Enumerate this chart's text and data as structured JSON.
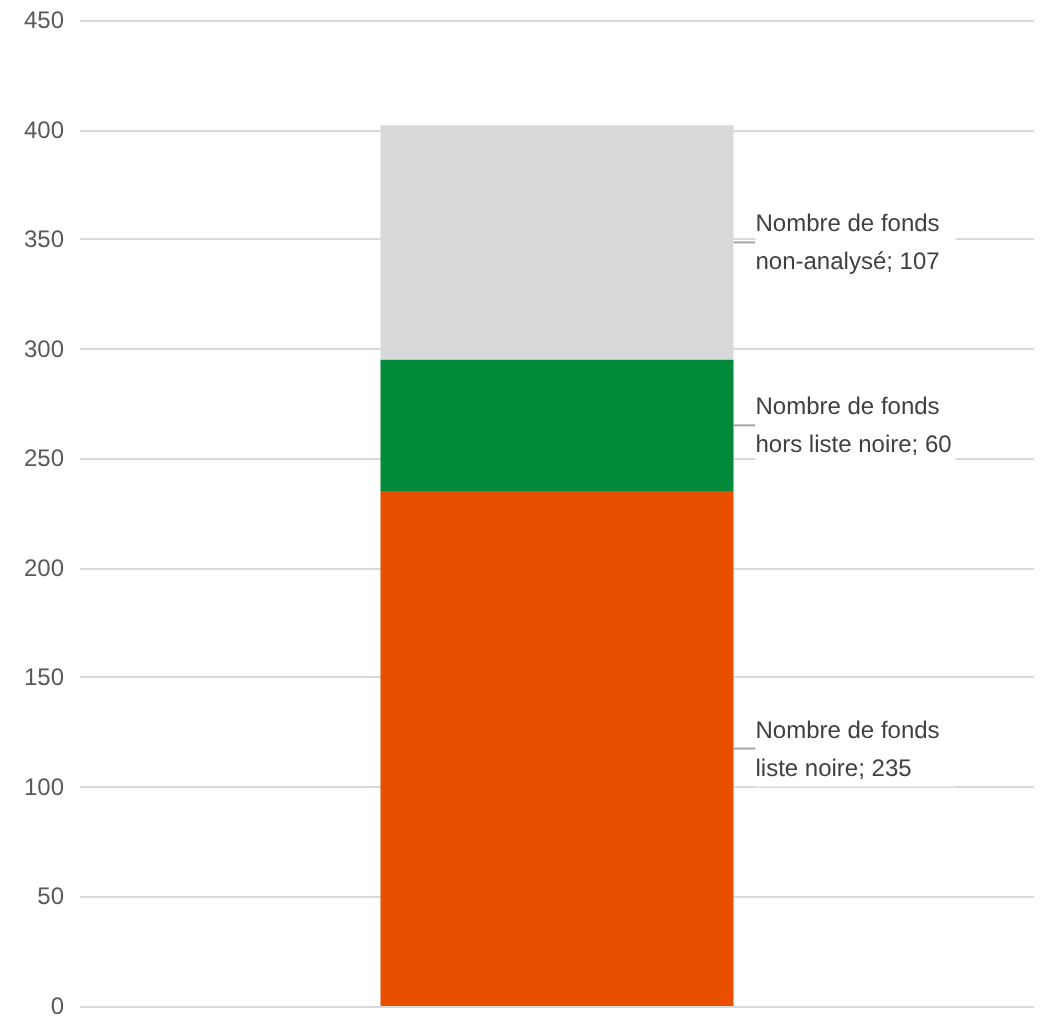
{
  "chart_data": {
    "type": "bar",
    "stacked": true,
    "categories": [
      null
    ],
    "series": [
      {
        "color": "#e85000",
        "values": [
          235
        ],
        "value_labels": [
          "Nombre de fonds liste noire; 235"
        ]
      },
      {
        "color": "#008a3a",
        "values": [
          60
        ],
        "value_labels": [
          "Nombre de fonds hors liste noire; 60"
        ]
      },
      {
        "color": "#d9d9d9",
        "values": [
          107
        ],
        "value_labels": [
          "Nombre de fonds non-analysé; 107"
        ]
      }
    ],
    "ylim": [
      0,
      450
    ],
    "yticks": [
      0,
      50,
      100,
      150,
      200,
      250,
      300,
      350,
      400,
      450
    ],
    "grid": "y"
  }
}
